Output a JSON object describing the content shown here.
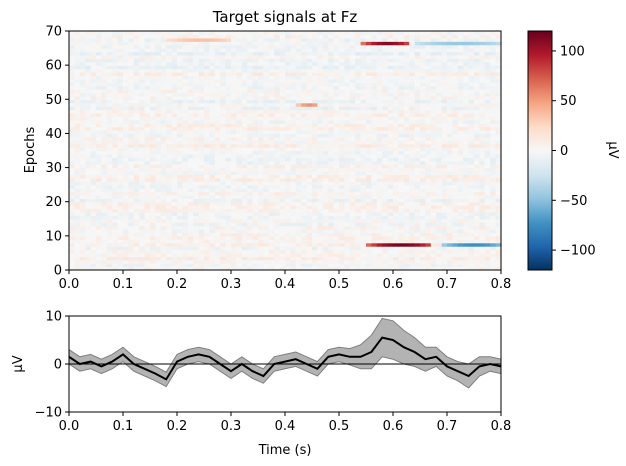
{
  "chart_data": [
    {
      "type": "heatmap",
      "title": "Target signals at Fz",
      "ylabel": "Epochs",
      "xlim": [
        0.0,
        0.8
      ],
      "ylim": [
        0,
        70
      ],
      "x_ticks": [
        "0.0",
        "0.1",
        "0.2",
        "0.3",
        "0.4",
        "0.5",
        "0.6",
        "0.7",
        "0.8"
      ],
      "y_ticks": [
        "0",
        "10",
        "20",
        "30",
        "40",
        "50",
        "60",
        "70"
      ],
      "n_epochs": 70,
      "colormap": "RdBu_r",
      "colorbar": {
        "label": "µV",
        "range": [
          -120,
          120
        ],
        "ticks": [
          "100",
          "50",
          "0",
          "−50",
          "−100"
        ],
        "tick_values": [
          100,
          50,
          0,
          -50,
          -100
        ]
      },
      "hotspots": [
        {
          "epoch": 7,
          "t_start": 0.55,
          "t_end": 0.67,
          "value": 115
        },
        {
          "epoch": 7,
          "t_start": 0.69,
          "t_end": 0.8,
          "value": -75
        },
        {
          "epoch": 66,
          "t_start": 0.54,
          "t_end": 0.63,
          "value": 110
        },
        {
          "epoch": 66,
          "t_start": 0.64,
          "t_end": 0.8,
          "value": -45
        },
        {
          "epoch": 48,
          "t_start": 0.42,
          "t_end": 0.46,
          "value": 55
        },
        {
          "epoch": 67,
          "t_start": 0.18,
          "t_end": 0.3,
          "value": 35
        }
      ]
    },
    {
      "type": "area",
      "ylabel": "µV",
      "xlabel": "Time (s)",
      "xlim": [
        0.0,
        0.8
      ],
      "ylim": [
        -10,
        10
      ],
      "x_ticks": [
        "0.0",
        "0.1",
        "0.2",
        "0.3",
        "0.4",
        "0.5",
        "0.6",
        "0.7",
        "0.8"
      ],
      "y_ticks": [
        "10",
        "0",
        "−10"
      ],
      "y_tick_values": [
        10,
        0,
        -10
      ],
      "zero_line": true,
      "mean": {
        "x": [
          0.0,
          0.02,
          0.04,
          0.06,
          0.08,
          0.1,
          0.12,
          0.14,
          0.16,
          0.18,
          0.2,
          0.22,
          0.24,
          0.26,
          0.28,
          0.3,
          0.32,
          0.34,
          0.36,
          0.38,
          0.4,
          0.42,
          0.44,
          0.46,
          0.48,
          0.5,
          0.52,
          0.54,
          0.56,
          0.58,
          0.6,
          0.62,
          0.64,
          0.66,
          0.68,
          0.7,
          0.72,
          0.74,
          0.76,
          0.78,
          0.8
        ],
        "y": [
          1.5,
          0.0,
          0.5,
          -0.5,
          0.5,
          2.0,
          0.0,
          -1.0,
          -2.0,
          -3.2,
          0.5,
          1.5,
          2.0,
          1.5,
          0.0,
          -1.5,
          0.0,
          -1.5,
          -2.5,
          0.0,
          0.5,
          1.0,
          0.0,
          -1.0,
          1.5,
          2.0,
          1.5,
          1.5,
          2.5,
          5.5,
          5.0,
          3.5,
          2.5,
          1.0,
          1.5,
          -0.5,
          -1.5,
          -2.5,
          -0.5,
          0.0,
          -0.5
        ]
      },
      "band": {
        "upper": [
          3.0,
          1.5,
          2.0,
          1.0,
          2.0,
          3.5,
          1.5,
          0.5,
          -0.5,
          -1.7,
          2.0,
          3.0,
          3.5,
          3.0,
          1.5,
          0.0,
          1.5,
          0.0,
          -1.0,
          1.5,
          2.0,
          2.5,
          1.5,
          0.5,
          3.0,
          3.5,
          3.2,
          4.0,
          6.0,
          9.5,
          9.0,
          7.0,
          5.5,
          3.5,
          3.5,
          1.5,
          0.5,
          0.0,
          1.5,
          1.5,
          1.0
        ],
        "lower": [
          0.0,
          -1.5,
          -1.0,
          -2.0,
          -1.0,
          0.5,
          -1.5,
          -2.5,
          -3.5,
          -4.7,
          -1.0,
          0.0,
          0.5,
          0.0,
          -1.5,
          -3.0,
          -1.5,
          -3.0,
          -4.0,
          -1.5,
          -1.0,
          -0.5,
          -1.5,
          -2.5,
          0.0,
          0.5,
          -0.2,
          -1.0,
          -1.0,
          1.5,
          1.0,
          0.0,
          -0.5,
          -1.5,
          -0.5,
          -2.5,
          -3.5,
          -5.0,
          -2.5,
          -1.5,
          -2.0
        ]
      }
    }
  ]
}
